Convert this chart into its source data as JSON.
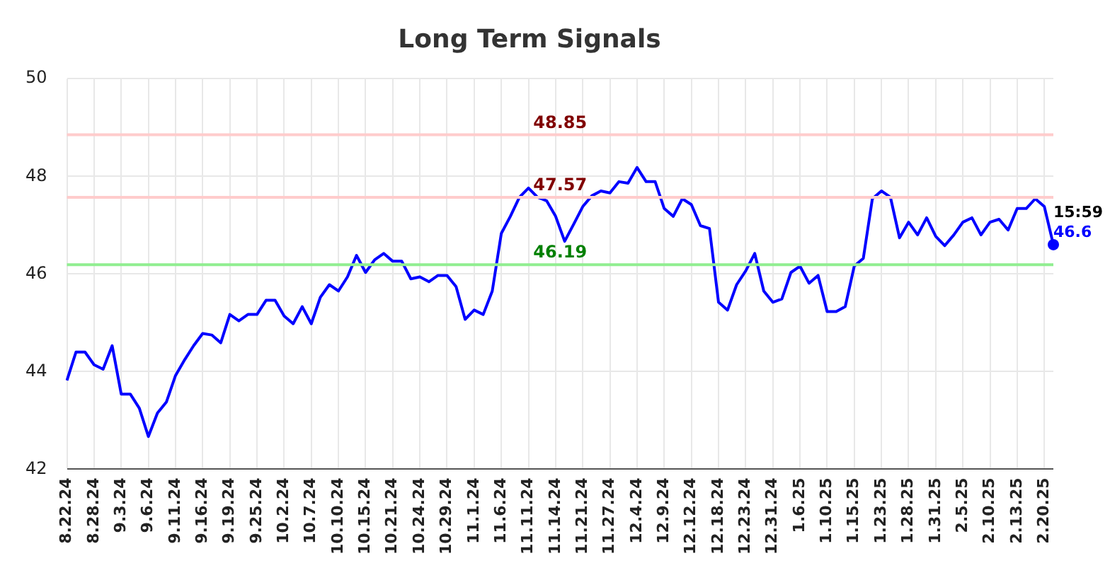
{
  "chart_data": {
    "type": "line",
    "title": "Long Term Signals",
    "categories": [
      "8.22.24",
      null,
      null,
      "8.28.24",
      null,
      null,
      "9.3.24",
      null,
      null,
      "9.6.24",
      null,
      null,
      "9.11.24",
      null,
      null,
      "9.16.24",
      null,
      null,
      "9.19.24",
      null,
      null,
      "9.25.24",
      null,
      null,
      "10.2.24",
      null,
      null,
      "10.7.24",
      null,
      null,
      "10.10.24",
      null,
      null,
      "10.15.24",
      null,
      null,
      "10.21.24",
      null,
      null,
      "10.24.24",
      null,
      null,
      "10.29.24",
      null,
      null,
      "11.1.24",
      null,
      null,
      "11.6.24",
      null,
      null,
      "11.11.24",
      null,
      null,
      "11.14.24",
      null,
      null,
      "11.21.24",
      null,
      null,
      "11.27.24",
      null,
      null,
      "12.4.24",
      null,
      null,
      "12.9.24",
      null,
      null,
      "12.12.24",
      null,
      null,
      "12.18.24",
      null,
      null,
      "12.23.24",
      null,
      null,
      "12.31.24",
      null,
      null,
      "1.6.25",
      null,
      null,
      "1.10.25",
      null,
      null,
      "1.15.25",
      null,
      null,
      "1.23.25",
      null,
      null,
      "1.28.25",
      null,
      null,
      "1.31.25",
      null,
      null,
      "2.5.25",
      null,
      null,
      "2.10.25",
      null,
      null,
      "2.13.25",
      null,
      null,
      "2.20.25",
      null
    ],
    "series": [
      {
        "color": "#0000ff",
        "values": [
          43.82,
          44.4,
          44.4,
          44.14,
          44.05,
          44.53,
          43.54,
          43.54,
          43.25,
          42.67,
          43.15,
          43.38,
          43.92,
          44.24,
          44.53,
          44.78,
          44.75,
          44.59,
          45.17,
          45.04,
          45.17,
          45.17,
          45.46,
          45.46,
          45.14,
          44.98,
          45.33,
          44.98,
          45.52,
          45.78,
          45.65,
          45.94,
          46.38,
          46.03,
          46.29,
          46.42,
          46.26,
          46.26,
          45.9,
          45.94,
          45.84,
          45.97,
          45.97,
          45.74,
          45.07,
          45.26,
          45.17,
          45.65,
          46.83,
          47.18,
          47.57,
          47.76,
          47.57,
          47.5,
          47.18,
          46.67,
          47.02,
          47.38,
          47.6,
          47.7,
          47.66,
          47.89,
          47.86,
          48.18,
          47.89,
          47.89,
          47.34,
          47.18,
          47.54,
          47.42,
          46.99,
          46.93,
          45.42,
          45.26,
          45.78,
          46.06,
          46.42,
          45.65,
          45.42,
          45.49,
          46.03,
          46.16,
          45.81,
          45.97,
          45.23,
          45.23,
          45.33,
          46.16,
          46.32,
          47.54,
          47.7,
          47.57,
          46.74,
          47.06,
          46.8,
          47.15,
          46.77,
          46.58,
          46.8,
          47.06,
          47.15,
          46.8,
          47.06,
          47.12,
          46.9,
          47.34,
          47.34,
          47.54,
          47.38,
          46.6
        ],
        "value_labels": [
          null,
          null,
          null,
          null,
          null,
          null,
          null,
          null,
          null,
          null,
          null,
          null,
          null,
          null,
          null,
          null,
          null,
          null,
          null,
          null,
          null,
          null,
          null,
          null,
          null,
          null,
          null,
          null,
          null,
          null,
          null,
          null,
          null,
          null,
          null,
          null,
          null,
          null,
          null,
          null,
          null,
          null,
          null,
          null,
          null,
          null,
          null,
          null,
          null,
          null,
          null,
          null,
          null,
          null,
          null,
          null,
          null,
          null,
          null,
          null,
          null,
          null,
          null,
          null,
          null,
          null,
          null,
          null,
          null,
          null,
          null,
          null,
          null,
          null,
          null,
          null,
          null,
          null,
          null,
          null,
          null,
          null,
          null,
          null,
          null,
          null,
          null,
          null,
          null,
          null,
          null,
          null,
          null,
          null,
          null,
          null,
          null,
          null,
          null,
          null,
          null,
          null,
          null,
          null,
          null,
          null,
          null,
          null,
          null,
          "46.6"
        ]
      }
    ],
    "ylim": [
      42,
      50
    ],
    "yticks": [
      42,
      44,
      46,
      48,
      50
    ],
    "ref_lines": [
      {
        "axis": "y",
        "value": 48.85,
        "label": "48.85",
        "color": "#ffcccc"
      },
      {
        "axis": "y",
        "value": 47.57,
        "label": "47.57",
        "color": "#ffcccc"
      },
      {
        "axis": "y",
        "value": 46.19,
        "label": "46.19",
        "color": "#90ee90"
      }
    ],
    "annotations": [
      "15:59"
    ],
    "grid": true,
    "legend": false,
    "marker": "none",
    "line_style": "solid"
  }
}
